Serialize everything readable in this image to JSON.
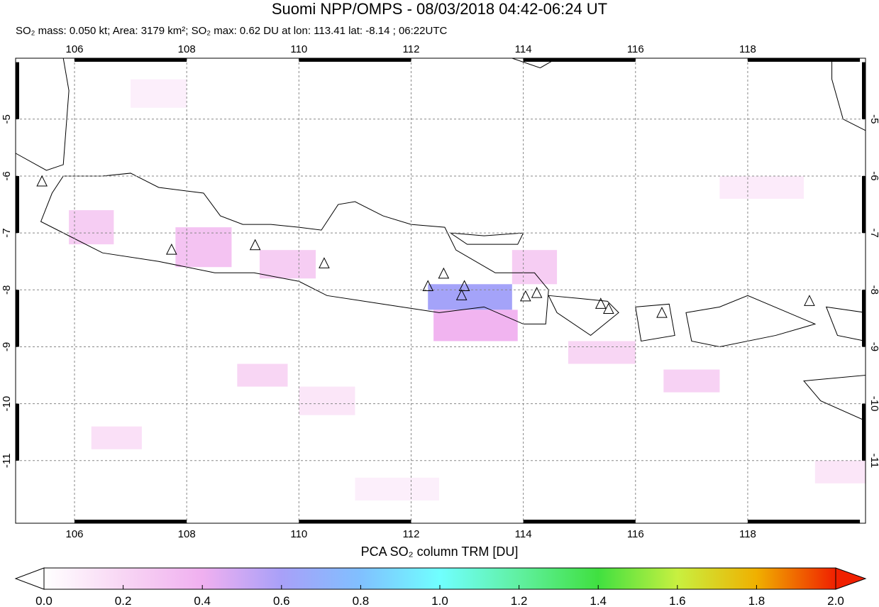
{
  "header": {
    "title": "Suomi NPP/OMPS - 08/03/2018 04:42-06:24 UT",
    "subtitle": "SO₂ mass: 0.050 kt; Area: 3179 km²; SO₂ max: 0.62 DU at lon: 113.41 lat: -8.14 ; 06:22UTC"
  },
  "map": {
    "lon_range": [
      104.95,
      120.1
    ],
    "lat_range": [
      -12.1,
      -3.93
    ],
    "lon_ticks": [
      "106",
      "108",
      "110",
      "112",
      "114",
      "116",
      "118"
    ],
    "lat_ticks": [
      "-5",
      "-6",
      "-7",
      "-8",
      "-9",
      "-10",
      "-11"
    ],
    "volcanoes": [
      [
        105.42,
        -6.1
      ],
      [
        107.73,
        -7.3
      ],
      [
        109.22,
        -7.22
      ],
      [
        110.45,
        -7.54
      ],
      [
        112.3,
        -7.94
      ],
      [
        112.58,
        -7.72
      ],
      [
        112.95,
        -7.94
      ],
      [
        112.9,
        -8.1
      ],
      [
        114.04,
        -8.12
      ],
      [
        114.24,
        -8.06
      ],
      [
        115.38,
        -8.25
      ],
      [
        115.52,
        -8.34
      ],
      [
        116.47,
        -8.41
      ],
      [
        119.1,
        -8.2
      ]
    ],
    "so2_patches": [
      [
        112.3,
        -7.9,
        113.8,
        -8.35,
        0.62
      ],
      [
        112.4,
        -8.35,
        113.9,
        -8.9,
        0.38
      ],
      [
        107.8,
        -6.9,
        108.8,
        -7.6,
        0.3
      ],
      [
        105.9,
        -6.6,
        106.7,
        -7.2,
        0.25
      ],
      [
        109.3,
        -7.3,
        110.3,
        -7.8,
        0.25
      ],
      [
        113.8,
        -7.3,
        114.6,
        -7.9,
        0.25
      ],
      [
        116.5,
        -9.4,
        117.5,
        -9.8,
        0.22
      ],
      [
        114.8,
        -8.9,
        116.0,
        -9.3,
        0.2
      ],
      [
        108.9,
        -9.3,
        109.8,
        -9.7,
        0.2
      ],
      [
        106.3,
        -10.4,
        107.2,
        -10.8,
        0.15
      ],
      [
        110.0,
        -9.7,
        111.0,
        -10.2,
        0.12
      ],
      [
        117.5,
        -6.0,
        119.0,
        -6.4,
        0.1
      ],
      [
        119.2,
        -11.0,
        120.1,
        -11.4,
        0.12
      ],
      [
        107.0,
        -4.3,
        108.0,
        -4.8,
        0.08
      ],
      [
        111.0,
        -11.3,
        112.5,
        -11.7,
        0.08
      ]
    ]
  },
  "colorbar": {
    "label": "PCA SO₂ column TRM [DU]",
    "ticks": [
      "0.0",
      "0.2",
      "0.4",
      "0.6",
      "0.8",
      "1.0",
      "1.2",
      "1.4",
      "1.6",
      "1.8",
      "2.0"
    ],
    "range": [
      0,
      2.0
    ],
    "colors": [
      "#ffffff",
      "#f8d6f4",
      "#f0b0f0",
      "#a8a0f8",
      "#80c0ff",
      "#70ffff",
      "#60f0a0",
      "#40e040",
      "#c8f040",
      "#f0b000",
      "#f02000"
    ]
  }
}
